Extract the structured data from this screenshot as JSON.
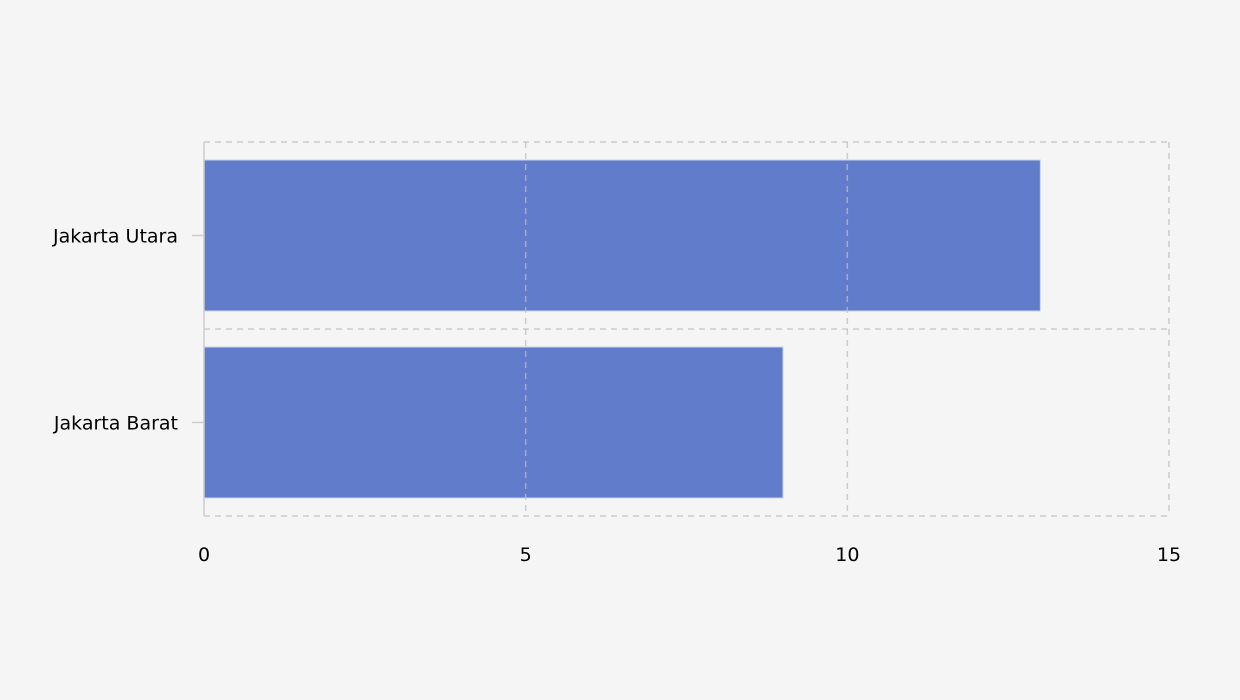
{
  "chart_data": {
    "type": "bar",
    "orientation": "horizontal",
    "title": "",
    "xlabel": "",
    "ylabel": "",
    "categories": [
      "Jakarta Utara",
      "Jakarta Barat"
    ],
    "values": [
      13,
      9
    ],
    "xlim": [
      0,
      15
    ],
    "xticks": [
      0,
      5,
      10,
      15
    ],
    "xtick_labels": [
      "0",
      "5",
      "10",
      "15"
    ],
    "grid": true,
    "grid_style": "dashed",
    "bar_color": "#607cca",
    "background_color": "#f5f5f5"
  }
}
